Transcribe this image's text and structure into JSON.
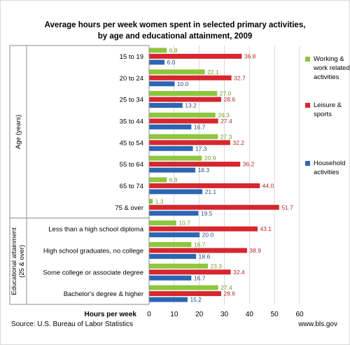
{
  "chart_data": {
    "type": "bar",
    "orientation": "horizontal",
    "title_lines": [
      "Average hours per week women spent in selected primary activities,",
      "by age and educational attainment, 2009"
    ],
    "xlabel": "Hours per week",
    "xlim": [
      0,
      60
    ],
    "xticks": [
      "0",
      "10",
      "20",
      "30",
      "40",
      "50",
      "60"
    ],
    "grid": "vertical",
    "legend_placement": "right",
    "groups": [
      {
        "label": "Age (years)",
        "categories": [
          "15 to 19",
          "20 to 24",
          "25 to 34",
          "35 to 44",
          "45 to 54",
          "55 to 64",
          "65 to 74",
          "75 & over"
        ]
      },
      {
        "label": "Educational attainment (25 & over)",
        "categories": [
          "Less than a high school diploma",
          "High school graduates, no college",
          "Some college or associate  degree",
          "Bachelor's degree & higher"
        ]
      }
    ],
    "categories": [
      "15 to 19",
      "20 to 24",
      "25 to 34",
      "35 to 44",
      "45 to 54",
      "55 to 64",
      "65 to 74",
      "75 & over",
      "Less than a high school diploma",
      "High school graduates, no college",
      "Some college or associate  degree",
      "Bachelor's degree & higher"
    ],
    "series": [
      {
        "name": "Working & work related activities",
        "legend_lines": [
          "Working &",
          "work related",
          "activities"
        ],
        "color": "#8dc63f",
        "label_color": "#6aa121",
        "values": [
          6.9,
          22.1,
          27.0,
          26.3,
          27.3,
          20.9,
          6.9,
          1.3,
          10.7,
          16.7,
          23.3,
          27.4
        ],
        "labels": [
          "6.9",
          "22.1",
          "27.0",
          "26.3",
          "27.3",
          "20.9",
          "6.9",
          "1.3",
          "10.7",
          "16.7",
          "23.3",
          "27.4"
        ]
      },
      {
        "name": "Leisure & sports",
        "legend_lines": [
          "Leisure &",
          "sports"
        ],
        "color": "#d7262e",
        "label_color": "#b3272d",
        "values": [
          36.8,
          32.7,
          28.6,
          27.4,
          32.2,
          36.2,
          44.0,
          51.7,
          43.1,
          38.9,
          32.4,
          28.6
        ],
        "labels": [
          "36.8",
          "32.7",
          "28.6",
          "27.4",
          "32.2",
          "36.2",
          "44.0",
          "51.7",
          "43.1",
          "38.9",
          "32.4",
          "28.6"
        ]
      },
      {
        "name": "Household activities",
        "legend_lines": [
          "Household",
          "activities"
        ],
        "color": "#2c66b3",
        "label_color": "#1f4e8c",
        "values": [
          6.0,
          10.0,
          13.2,
          16.7,
          17.3,
          18.3,
          21.1,
          19.5,
          20.0,
          18.6,
          16.7,
          15.2
        ],
        "labels": [
          "6.0",
          "10.0",
          "13.2",
          "16.7",
          "17.3",
          "18.3",
          "21.1",
          "19.5",
          "20.0",
          "18.6",
          "16.7",
          "15.2"
        ]
      }
    ]
  },
  "footer": {
    "source": "Source: U.S. Bureau of Labor Statistics",
    "credit": "www.bls.gov"
  }
}
